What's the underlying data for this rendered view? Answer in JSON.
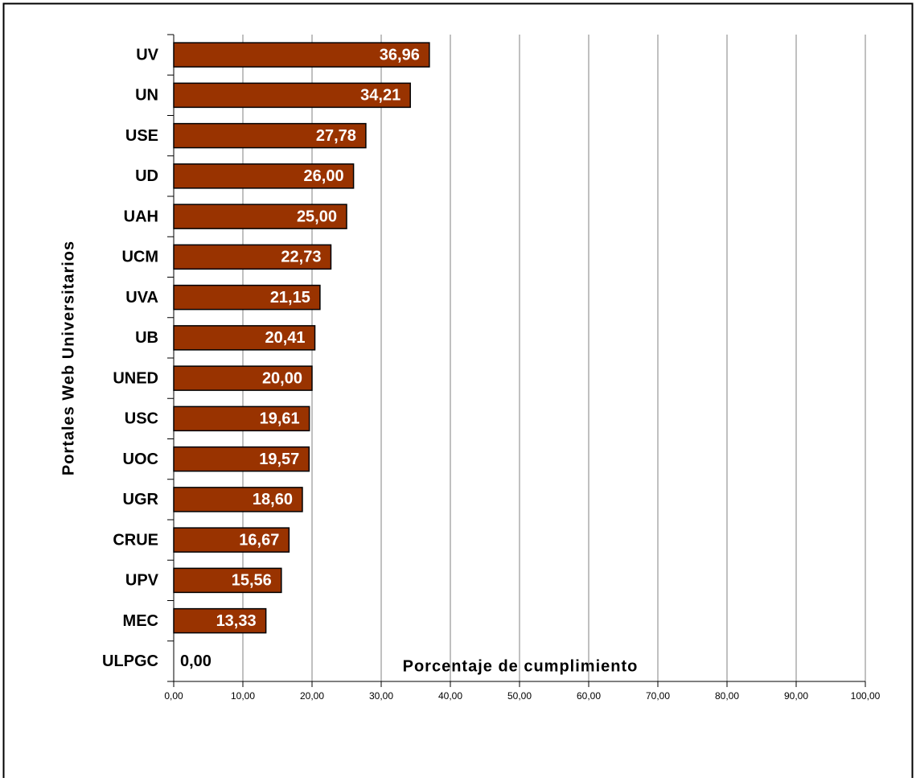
{
  "chart_data": {
    "type": "bar",
    "orientation": "horizontal",
    "x_label": "Porcentaje de cumplimiento",
    "y_label": "Portales Web Universitarios",
    "categories": [
      "UV",
      "UN",
      "USE",
      "UD",
      "UAH",
      "UCM",
      "UVA",
      "UB",
      "UNED",
      "USC",
      "UOC",
      "UGR",
      "CRUE",
      "UPV",
      "MEC",
      "ULPGC"
    ],
    "values": [
      36.96,
      34.21,
      27.78,
      26.0,
      25.0,
      22.73,
      21.15,
      20.41,
      20.0,
      19.61,
      19.57,
      18.6,
      16.67,
      15.56,
      13.33,
      0.0
    ],
    "value_labels": [
      "36,96",
      "34,21",
      "27,78",
      "26,00",
      "25,00",
      "22,73",
      "21,15",
      "20,41",
      "20,00",
      "19,61",
      "19,57",
      "18,60",
      "16,67",
      "15,56",
      "13,33",
      "0,00"
    ],
    "color": "#993300",
    "xlim": [
      0,
      100
    ],
    "xticks": [
      {
        "value": 0,
        "label": "0,00"
      },
      {
        "value": 10,
        "label": "10,00"
      },
      {
        "value": 20,
        "label": "20,00"
      },
      {
        "value": 30,
        "label": "30,00"
      },
      {
        "value": 40,
        "label": "40,00"
      },
      {
        "value": 50,
        "label": "50,00"
      },
      {
        "value": 60,
        "label": "60,00"
      },
      {
        "value": 70,
        "label": "70,00"
      },
      {
        "value": 80,
        "label": "80,00"
      },
      {
        "value": 90,
        "label": "90,00"
      },
      {
        "value": 100,
        "label": "100,00"
      }
    ],
    "grid": true
  }
}
